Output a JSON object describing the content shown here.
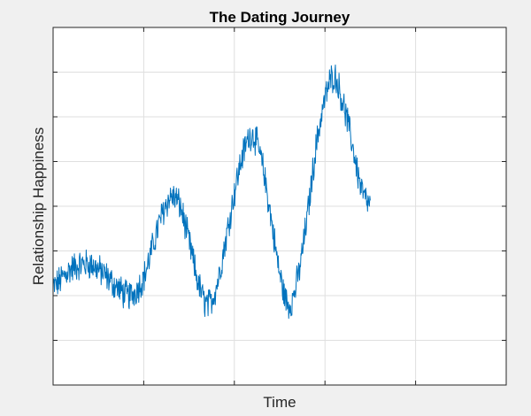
{
  "chart_data": {
    "type": "line",
    "title": "The Dating Journey",
    "xlabel": "Time",
    "ylabel": "Relationship Happiness",
    "xlim": [
      0,
      5
    ],
    "ylim": [
      0,
      8
    ],
    "grid": true,
    "tick_labels_visible": false,
    "x_ticks": [
      0,
      1,
      2,
      3,
      4,
      5
    ],
    "y_ticks": [
      0,
      1,
      2,
      3,
      4,
      5,
      6,
      7,
      8
    ],
    "noise_amplitude": 0.3,
    "series": [
      {
        "color": "#0072bd",
        "x": [
          0.0,
          0.2,
          0.4,
          0.55,
          0.7,
          0.85,
          1.0,
          1.1,
          1.2,
          1.3,
          1.4,
          1.5,
          1.6,
          1.7,
          1.8,
          1.9,
          2.0,
          2.1,
          2.2,
          2.3,
          2.4,
          2.5,
          2.6,
          2.7,
          2.8,
          2.9,
          3.0,
          3.1,
          3.2,
          3.3,
          3.4,
          3.5
        ],
        "y": [
          2.2,
          2.6,
          2.7,
          2.5,
          2.2,
          2.0,
          2.4,
          3.1,
          3.8,
          4.2,
          4.0,
          3.2,
          2.3,
          1.8,
          2.2,
          3.2,
          4.3,
          5.2,
          5.6,
          5.0,
          3.8,
          2.5,
          1.8,
          2.4,
          3.7,
          5.3,
          6.4,
          6.9,
          6.3,
          5.4,
          4.4,
          4.0
        ]
      }
    ],
    "colors": {
      "line": "#0072bd",
      "grid": "#dfdfdf",
      "axes_bg": "#ffffff",
      "figure_bg": "#f0f0f0",
      "axis": "#262626"
    }
  }
}
